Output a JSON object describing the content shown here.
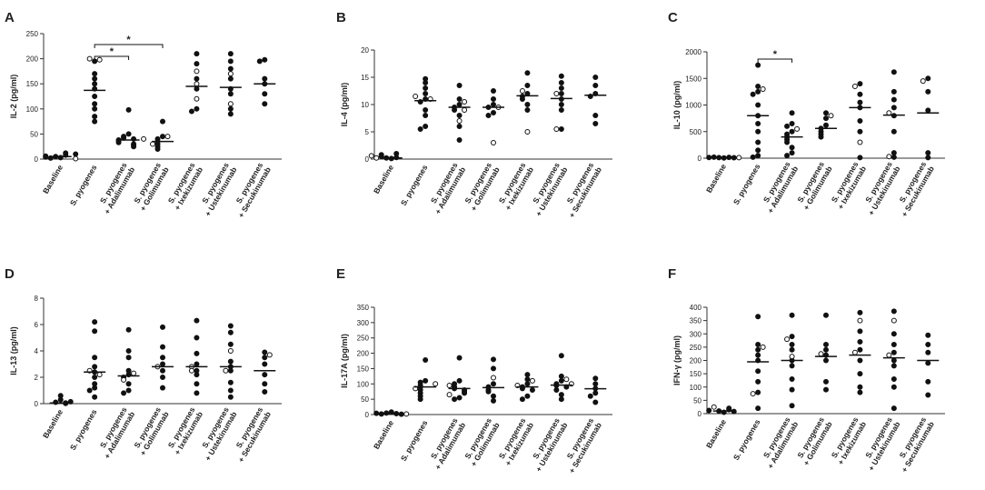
{
  "figure": {
    "category_labels": [
      [
        "Baseline"
      ],
      [
        "S. pyogenes"
      ],
      [
        "S. pyogenes",
        "+ Adalimumab"
      ],
      [
        "S. pyogenes",
        "+ Golimumab"
      ],
      [
        "S. pyogenes",
        "+ Ixekizumab"
      ],
      [
        "S. pyogenes",
        "+ Ustekinumab"
      ],
      [
        "S. pyogenes",
        "+ Secukinumab"
      ]
    ],
    "colors": {
      "marker": "#111111",
      "axis": "#333333"
    }
  },
  "chart_data": [
    {
      "panel_label": "A",
      "type": "scatter",
      "ylabel": "IL-2 (pg/ml)",
      "ylim": [
        0,
        250
      ],
      "yticks": [
        0,
        50,
        100,
        150,
        200,
        250
      ],
      "categories": [
        "Baseline",
        "S. pyogenes",
        "S. pyogenes + Adalimumab",
        "S. pyogenes + Golimumab",
        "S. pyogenes + Ixekizumab",
        "S. pyogenes + Ustekinumab",
        "S. pyogenes + Secukinumab"
      ],
      "medians": [
        5,
        137,
        38,
        35,
        145,
        143,
        150
      ],
      "points": [
        {
          "filled": [
            3,
            5,
            8,
            12,
            2,
            6,
            4,
            10
          ],
          "open": [
            1
          ]
        },
        {
          "filled": [
            195,
            170,
            160,
            150,
            140,
            125,
            110,
            100,
            85,
            75
          ],
          "open": [
            200,
            198
          ]
        },
        {
          "filled": [
            98,
            50,
            45,
            42,
            40,
            38,
            36,
            33,
            30,
            28,
            25
          ],
          "open": [
            40
          ]
        },
        {
          "filled": [
            75,
            45,
            40,
            35,
            30,
            25,
            20
          ],
          "open": [
            45,
            30
          ]
        },
        {
          "filled": [
            210,
            190,
            160,
            140,
            100,
            95
          ],
          "open": [
            175,
            150,
            120
          ]
        },
        {
          "filled": [
            210,
            195,
            180,
            160,
            140,
            130,
            100,
            90
          ],
          "open": [
            170,
            110
          ]
        },
        {
          "filled": [
            198,
            195,
            160,
            150,
            130,
            110
          ],
          "open": []
        }
      ],
      "significance": [
        {
          "from": 1,
          "to": 2,
          "label": "*"
        },
        {
          "from": 1,
          "to": 3,
          "label": "*"
        }
      ]
    },
    {
      "panel_label": "B",
      "type": "scatter",
      "ylabel": "IL-4 (pg/ml)",
      "ylim": [
        0,
        20
      ],
      "yticks": [
        0,
        5,
        10,
        15,
        20
      ],
      "categories": [
        "Baseline",
        "S. pyogenes",
        "S. pyogenes + Adalimumab",
        "S. pyogenes + Golimumab",
        "S. pyogenes + Ixekizumab",
        "S. pyogenes + Ustekinumab",
        "S. pyogenes + Secukinumab"
      ],
      "medians": [
        0.2,
        10.7,
        9.5,
        9.5,
        11.6,
        11.1,
        11.7
      ],
      "points": [
        {
          "filled": [
            0.1,
            0.2,
            0.3,
            0.5,
            0.8,
            1.0
          ],
          "open": [
            0.2,
            0.6
          ]
        },
        {
          "filled": [
            14.7,
            14,
            13,
            12,
            11,
            10.5,
            9,
            8,
            6,
            5.5
          ],
          "open": [
            11,
            11.5
          ]
        },
        {
          "filled": [
            13.5,
            11,
            10,
            9.5,
            9,
            8,
            6,
            3.5
          ],
          "open": [
            10.5,
            9,
            7
          ]
        },
        {
          "filled": [
            12.5,
            11,
            10,
            9.5,
            8.5,
            8
          ],
          "open": [
            9.5,
            3
          ]
        },
        {
          "filled": [
            15.8,
            13.5,
            12,
            11.5,
            11,
            10,
            9
          ],
          "open": [
            12.5,
            5
          ]
        },
        {
          "filled": [
            15.2,
            14,
            13,
            12,
            11,
            10,
            9,
            5.5
          ],
          "open": [
            12,
            5.5
          ]
        },
        {
          "filled": [
            15,
            13.5,
            12,
            11.5,
            8,
            6.5
          ],
          "open": []
        }
      ],
      "significance": []
    },
    {
      "panel_label": "C",
      "type": "scatter",
      "ylabel": "IL-10 (pg/ml)",
      "ylim": [
        0,
        2000
      ],
      "yticks": [
        0,
        500,
        1000,
        1500,
        2000
      ],
      "categories": [
        "Baseline",
        "S. pyogenes",
        "S. pyogenes + Adalimumab",
        "S. pyogenes + Golimumab",
        "S. pyogenes + Ixekizumab",
        "S. pyogenes + Ustekinumab",
        "S. pyogenes + Secukinumab"
      ],
      "medians": [
        10,
        800,
        400,
        560,
        950,
        810,
        850
      ],
      "points": [
        {
          "filled": [
            5,
            10,
            15,
            20,
            8,
            12
          ],
          "open": [
            10
          ]
        },
        {
          "filled": [
            1750,
            1350,
            1250,
            1200,
            1000,
            800,
            650,
            500,
            300,
            150,
            50,
            20
          ],
          "open": [
            1300
          ]
        },
        {
          "filled": [
            850,
            650,
            600,
            500,
            450,
            400,
            350,
            300,
            200,
            100,
            50
          ],
          "open": [
            550
          ]
        },
        {
          "filled": [
            850,
            750,
            620,
            560,
            500,
            450,
            400
          ],
          "open": [
            800
          ]
        },
        {
          "filled": [
            1400,
            1200,
            1050,
            950,
            700,
            500,
            10
          ],
          "open": [
            1350,
            300
          ]
        },
        {
          "filled": [
            1620,
            1250,
            1100,
            950,
            800,
            500,
            100,
            20
          ],
          "open": [
            850,
            30
          ]
        },
        {
          "filled": [
            1500,
            1250,
            900,
            100,
            10
          ],
          "open": [
            1450
          ]
        }
      ],
      "significance": [
        {
          "from": 1,
          "to": 2,
          "label": "*"
        }
      ]
    },
    {
      "panel_label": "D",
      "type": "scatter",
      "ylabel": "IL-13 (pg/ml)",
      "ylim": [
        0,
        8
      ],
      "yticks": [
        0,
        2,
        4,
        6,
        8
      ],
      "categories": [
        "Baseline",
        "S. pyogenes",
        "S. pyogenes + Adalimumab",
        "S. pyogenes + Golimumab",
        "S. pyogenes + Ixekizumab",
        "S. pyogenes + Ustekinumab",
        "S. pyogenes + Secukinumab"
      ],
      "medians": [
        0.05,
        2.4,
        2.1,
        2.8,
        2.8,
        2.8,
        2.5
      ],
      "points": [
        {
          "filled": [
            0.6,
            0.3,
            0.1,
            0.05,
            0.02,
            0.15
          ],
          "open": []
        },
        {
          "filled": [
            6.2,
            5.5,
            3.5,
            2.8,
            2.4,
            2,
            1.5,
            1.2,
            1,
            0.5
          ],
          "open": [
            2.5,
            2.2
          ]
        },
        {
          "filled": [
            5.6,
            4,
            3.5,
            2.5,
            2.2,
            2,
            1.5,
            1,
            0.8
          ],
          "open": [
            2.3,
            1.8
          ]
        },
        {
          "filled": [
            5.8,
            4.3,
            3.5,
            3,
            2.5,
            2,
            1.2
          ],
          "open": [
            2.8
          ]
        },
        {
          "filled": [
            6.3,
            5,
            3.8,
            3,
            2.5,
            2.2,
            1.5,
            0.8
          ],
          "open": [
            2.8,
            2.5
          ]
        },
        {
          "filled": [
            5.9,
            5.4,
            4.5,
            3.2,
            2.8,
            2.5,
            1.6,
            1,
            0.5
          ],
          "open": [
            4,
            2.5
          ]
        },
        {
          "filled": [
            3.9,
            3.5,
            3,
            2.2,
            1.5,
            0.9
          ],
          "open": [
            3.7
          ]
        }
      ],
      "significance": []
    },
    {
      "panel_label": "E",
      "type": "scatter",
      "ylabel": "IL-17A (pg/ml)",
      "ylim": [
        0,
        350
      ],
      "yticks": [
        0,
        50,
        100,
        150,
        200,
        250,
        300,
        350
      ],
      "categories": [
        "Baseline",
        "S. pyogenes",
        "S. pyogenes + Adalimumab",
        "S. pyogenes + Golimumab",
        "S. pyogenes + Ixekizumab",
        "S. pyogenes + Ustekinumab",
        "S. pyogenes + Secukinumab"
      ],
      "medians": [
        3,
        90,
        85,
        88,
        90,
        96,
        84
      ],
      "points": [
        {
          "filled": [
            8,
            5,
            3,
            2,
            1,
            4
          ],
          "open": [
            2
          ]
        },
        {
          "filled": [
            178,
            110,
            105,
            95,
            90,
            80,
            70,
            60,
            50
          ],
          "open": [
            100,
            85
          ]
        },
        {
          "filled": [
            185,
            110,
            100,
            90,
            85,
            80,
            75,
            70,
            55,
            50
          ],
          "open": [
            95,
            65
          ]
        },
        {
          "filled": [
            180,
            150,
            100,
            90,
            80,
            75,
            60,
            45
          ],
          "open": [
            120
          ]
        },
        {
          "filled": [
            130,
            115,
            100,
            90,
            85,
            80,
            60,
            50
          ],
          "open": [
            110,
            95
          ]
        },
        {
          "filled": [
            192,
            125,
            110,
            100,
            95,
            90,
            80,
            65,
            50
          ],
          "open": [
            115,
            100
          ]
        },
        {
          "filled": [
            118,
            100,
            85,
            70,
            60,
            40
          ],
          "open": []
        }
      ],
      "significance": []
    },
    {
      "panel_label": "F",
      "type": "scatter",
      "ylabel": "IFN-γ (pg/ml)",
      "ylim": [
        0,
        400
      ],
      "yticks": [
        0,
        50,
        100,
        150,
        200,
        250,
        300,
        350,
        400
      ],
      "categories": [
        "Baseline",
        "S. pyogenes",
        "S. pyogenes + Adalimumab",
        "S. pyogenes + Golimumab",
        "S. pyogenes + Ixekizumab",
        "S. pyogenes + Ustekinumab",
        "S. pyogenes + Secukinumab"
      ],
      "medians": [
        10,
        195,
        200,
        215,
        220,
        210,
        200
      ],
      "points": [
        {
          "filled": [
            5,
            10,
            15,
            20,
            8,
            12
          ],
          "open": [
            25
          ]
        },
        {
          "filled": [
            365,
            260,
            240,
            220,
            200,
            160,
            120,
            80,
            20
          ],
          "open": [
            250,
            75
          ]
        },
        {
          "filled": [
            370,
            290,
            260,
            240,
            200,
            180,
            130,
            90,
            30
          ],
          "open": [
            280,
            215
          ]
        },
        {
          "filled": [
            370,
            260,
            240,
            220,
            200,
            120,
            90
          ],
          "open": [
            225
          ]
        },
        {
          "filled": [
            380,
            310,
            270,
            240,
            200,
            150,
            100,
            80
          ],
          "open": [
            350,
            230
          ]
        },
        {
          "filled": [
            385,
            300,
            260,
            230,
            200,
            180,
            130,
            100,
            20
          ],
          "open": [
            350,
            220
          ]
        },
        {
          "filled": [
            295,
            260,
            230,
            190,
            120,
            70
          ],
          "open": []
        }
      ],
      "significance": []
    }
  ]
}
